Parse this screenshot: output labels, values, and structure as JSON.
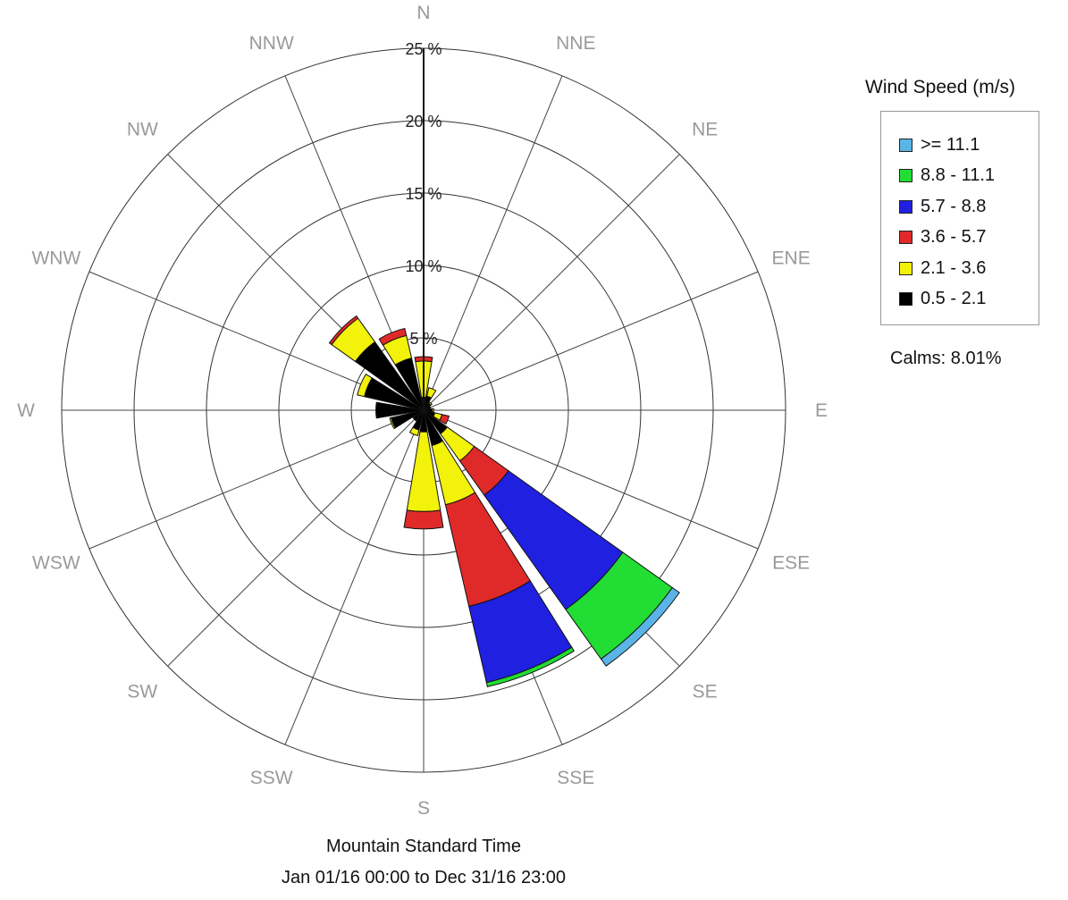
{
  "chart_data": {
    "type": "wind-rose",
    "title": "",
    "directions": [
      "N",
      "NNE",
      "NE",
      "ENE",
      "E",
      "ESE",
      "SE",
      "SSE",
      "S",
      "SSW",
      "SW",
      "WSW",
      "W",
      "WNW",
      "NW",
      "NNW"
    ],
    "radial_labels": [
      "5 %",
      "10 %",
      "15 %",
      "20 %",
      "25 %"
    ],
    "radial_max": 25,
    "rings": [
      5,
      10,
      15,
      20,
      25
    ],
    "legend_title": "Wind Speed (m/s)",
    "legend_placement": "right",
    "calms": "Calms: 8.01%",
    "speed_bins": [
      {
        "label": ">= 11.1",
        "color": "#5ab4e6"
      },
      {
        "label": "8.8 - 11.1",
        "color": "#22dd33"
      },
      {
        "label": "5.7 - 8.8",
        "color": "#2020e0"
      },
      {
        "label": "3.6 - 5.7",
        "color": "#e02a2a"
      },
      {
        "label": "2.1 - 3.6",
        "color": "#f2f20a"
      },
      {
        "label": "0.5 - 2.1",
        "color": "#000000"
      }
    ],
    "series_order_inner_to_outer": [
      "0.5 - 2.1",
      "2.1 - 3.6",
      "3.6 - 5.7",
      "5.7 - 8.8",
      "8.8 - 11.1",
      ">= 11.1"
    ],
    "frequencies": {
      "N": [
        0.9,
        2.5,
        0.3,
        0.0,
        0.0,
        0.0
      ],
      "NNE": [
        1.0,
        0.6,
        0.0,
        0.0,
        0.0,
        0.0
      ],
      "NE": [
        0.6,
        0.1,
        0.0,
        0.0,
        0.0,
        0.0
      ],
      "ENE": [
        0.5,
        0.0,
        0.0,
        0.0,
        0.0,
        0.0
      ],
      "E": [
        0.6,
        0.1,
        0.0,
        0.0,
        0.0,
        0.0
      ],
      "ESE": [
        0.8,
        0.5,
        0.5,
        0.0,
        0.0,
        0.0
      ],
      "SE": [
        2.0,
        2.3,
        2.9,
        9.7,
        4.2,
        0.6
      ],
      "SSE": [
        2.5,
        4.2,
        7.2,
        5.4,
        0.3,
        0.0
      ],
      "S": [
        1.5,
        5.5,
        1.2,
        0.0,
        0.0,
        0.0
      ],
      "SSW": [
        1.4,
        0.4,
        0.0,
        0.0,
        0.0,
        0.0
      ],
      "SW": [
        0.9,
        0.0,
        0.0,
        0.0,
        0.0,
        0.0
      ],
      "WSW": [
        2.3,
        0.1,
        0.0,
        0.0,
        0.0,
        0.0
      ],
      "W": [
        3.3,
        0.0,
        0.0,
        0.0,
        0.0,
        0.0
      ],
      "WNW": [
        4.2,
        0.5,
        0.0,
        0.0,
        0.0,
        0.0
      ],
      "NW": [
        5.8,
        2.0,
        0.2,
        0.0,
        0.0,
        0.0
      ],
      "NNW": [
        3.7,
        1.6,
        0.5,
        0.0,
        0.0,
        0.0
      ]
    }
  },
  "footer": {
    "line1": "Mountain Standard Time",
    "line2": "Jan 01/16 00:00 to Dec 31/16 23:00"
  }
}
